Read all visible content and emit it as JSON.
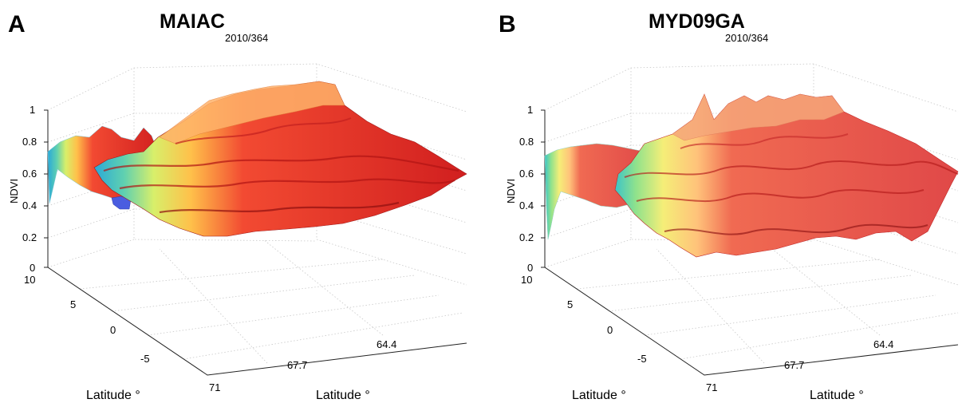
{
  "panels": [
    {
      "letter": "A",
      "title": "MAIAC",
      "subtitle": "2010/364",
      "ylabel": "NDVI",
      "zticks": [
        "0",
        "0.2",
        "0.4",
        "0.6",
        "0.8",
        "1"
      ],
      "lon_ticks": [
        "10",
        "5",
        "0",
        "-5"
      ],
      "lat_ticks": [
        "71",
        "67.7",
        "64.4"
      ],
      "xlabel_left": "Latitude °",
      "xlabel_right": "Latitude °"
    },
    {
      "letter": "B",
      "title": "MYD09GA",
      "subtitle": "2010/364",
      "ylabel": "NDVI",
      "zticks": [
        "0",
        "0.2",
        "0.4",
        "0.6",
        "0.8",
        "1"
      ],
      "lon_ticks": [
        "10",
        "5",
        "0",
        "-5"
      ],
      "lat_ticks": [
        "71",
        "67.7",
        "64.4"
      ],
      "xlabel_left": "Latitude °",
      "xlabel_right": "Latitude °"
    }
  ],
  "chart_data": [
    {
      "type": "surface3d",
      "panel": "A",
      "title": "MAIAC",
      "subtitle": "2010/364",
      "zlabel": "NDVI",
      "xlabel": "Latitude °",
      "ylabel": "Latitude °",
      "zlim": [
        0,
        1
      ],
      "zticks": [
        0,
        0.2,
        0.4,
        0.6,
        0.8,
        1
      ],
      "lon_ticks": [
        10,
        5,
        0,
        -5
      ],
      "lat_ticks": [
        71,
        67.7,
        64.4
      ],
      "colormap": "jet",
      "typical_ndvi_range": [
        0.35,
        0.85
      ],
      "grid": true
    },
    {
      "type": "surface3d",
      "panel": "B",
      "title": "MYD09GA",
      "subtitle": "2010/364",
      "zlabel": "NDVI",
      "xlabel": "Latitude °",
      "ylabel": "Latitude °",
      "zlim": [
        0,
        1
      ],
      "zticks": [
        0,
        0.2,
        0.4,
        0.6,
        0.8,
        1
      ],
      "lon_ticks": [
        10,
        5,
        0,
        -5
      ],
      "lat_ticks": [
        71,
        67.7,
        64.4
      ],
      "colormap": "jet",
      "typical_ndvi_range": [
        0.15,
        0.9
      ],
      "grid": true
    }
  ]
}
